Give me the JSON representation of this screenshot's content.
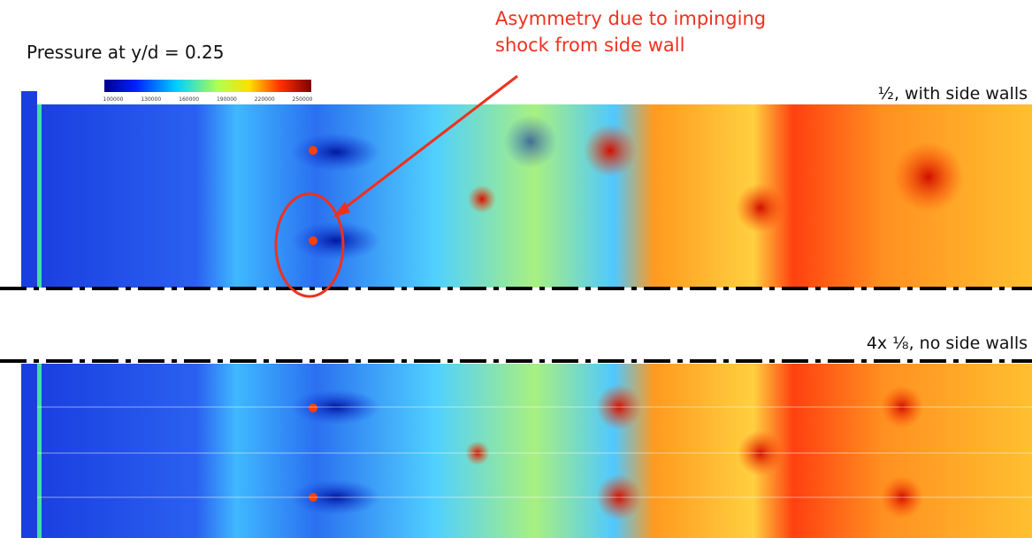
{
  "title": "Pressure at y/d = 0.25",
  "annotation": {
    "lines": [
      "Asymmetry due to impinging",
      "shock from side wall"
    ]
  },
  "colorbar": {
    "ticks": [
      "100000",
      "130000",
      "160000",
      "190000",
      "220000",
      "250000"
    ]
  },
  "panels": [
    {
      "label": "½, with side walls"
    },
    {
      "label": "4x ⅛, no side walls"
    }
  ]
}
